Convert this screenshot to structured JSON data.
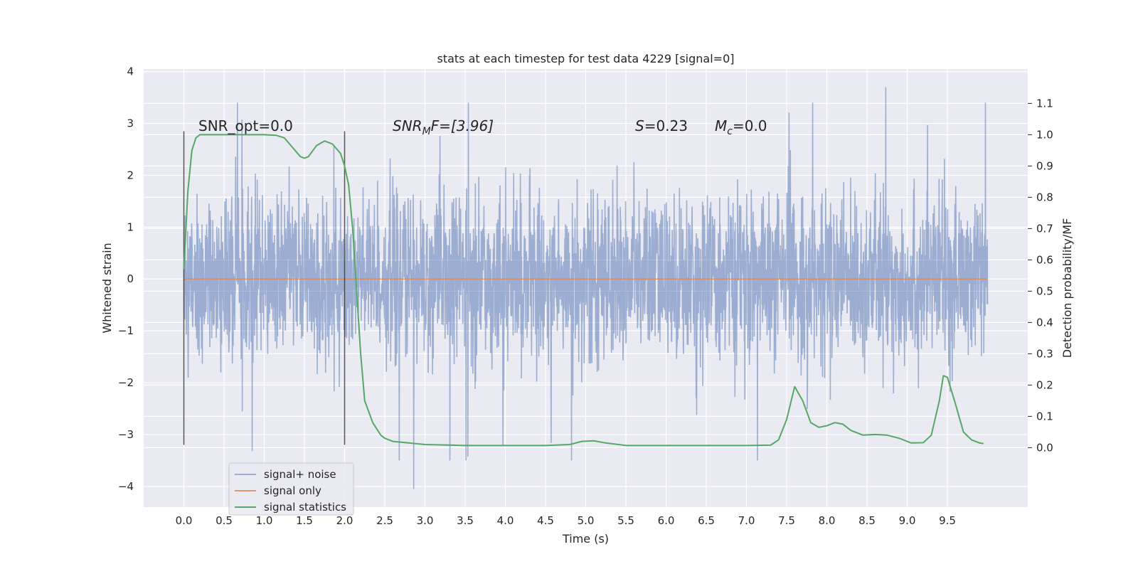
{
  "chart_data": {
    "type": "line",
    "title": "stats at each timestep for test data 4229 [signal=0]",
    "xlabel": "Time (s)",
    "ylabel": "Whitened strain",
    "y2label": "Detection probability/MF",
    "xlim": [
      -0.5,
      10.5
    ],
    "ylim": [
      -4.4,
      4.05
    ],
    "y2lim": [
      -0.19,
      1.21
    ],
    "x_ticks": [
      "0.0",
      "0.5",
      "1.0",
      "1.5",
      "2.0",
      "2.5",
      "3.0",
      "3.5",
      "4.0",
      "4.5",
      "5.0",
      "5.5",
      "6.0",
      "6.5",
      "7.0",
      "7.5",
      "8.0",
      "8.5",
      "9.0",
      "9.5"
    ],
    "y_ticks": [
      "−4",
      "−3",
      "−2",
      "−1",
      "0",
      "1",
      "2",
      "3",
      "4"
    ],
    "y2_ticks": [
      "0.0",
      "0.1",
      "0.2",
      "0.3",
      "0.4",
      "0.5",
      "0.6",
      "0.7",
      "0.8",
      "0.9",
      "1.0",
      "1.1"
    ],
    "grid": true,
    "legend_placement": "lower-left",
    "annotations": {
      "snr_opt": "SNR_opt=0.0",
      "snr_mf_name": "SNR",
      "snr_mf_sub": "M",
      "snr_mf_rest": "F=[3.96]",
      "s_name": "S",
      "s_rest": "=0.23",
      "mc_name": "M",
      "mc_sub": "c",
      "mc_rest": "=0.0"
    },
    "vertical_markers": [
      0.0,
      2.0
    ],
    "series": [
      {
        "name": "signal+ noise",
        "color": "#4c72b0",
        "axis": "left",
        "x_range": [
          0.0,
          10.0
        ],
        "noise_band": [
          -1.0,
          1.0
        ],
        "peak_extremes": [
          3.7,
          -4.05
        ]
      },
      {
        "name": "signal only",
        "color": "#dd8452",
        "axis": "left",
        "x": [
          0.0,
          10.0
        ],
        "y": [
          0.0,
          0.0
        ]
      },
      {
        "name": "signal statistics",
        "color": "#55a868",
        "axis": "right",
        "x": [
          0.0,
          0.05,
          0.1,
          0.15,
          0.2,
          0.3,
          0.5,
          0.8,
          1.0,
          1.15,
          1.25,
          1.35,
          1.45,
          1.5,
          1.55,
          1.65,
          1.75,
          1.85,
          1.95,
          2.0,
          2.05,
          2.1,
          2.15,
          2.2,
          2.25,
          2.35,
          2.45,
          2.5,
          2.6,
          2.8,
          3.0,
          3.5,
          4.0,
          4.5,
          4.8,
          4.95,
          5.1,
          5.25,
          5.5,
          6.0,
          6.5,
          7.0,
          7.3,
          7.4,
          7.5,
          7.6,
          7.7,
          7.8,
          7.9,
          8.0,
          8.1,
          8.2,
          8.3,
          8.45,
          8.6,
          8.75,
          8.9,
          9.05,
          9.2,
          9.3,
          9.4,
          9.45,
          9.5,
          9.6,
          9.7,
          9.8,
          9.9,
          9.95
        ],
        "y": [
          0.57,
          0.82,
          0.95,
          0.99,
          1.0,
          1.0,
          1.0,
          1.0,
          1.0,
          0.998,
          0.99,
          0.96,
          0.93,
          0.925,
          0.93,
          0.965,
          0.98,
          0.97,
          0.94,
          0.9,
          0.84,
          0.7,
          0.5,
          0.3,
          0.15,
          0.08,
          0.04,
          0.03,
          0.02,
          0.015,
          0.01,
          0.007,
          0.007,
          0.007,
          0.01,
          0.02,
          0.022,
          0.015,
          0.007,
          0.007,
          0.007,
          0.007,
          0.008,
          0.025,
          0.09,
          0.195,
          0.15,
          0.08,
          0.065,
          0.07,
          0.08,
          0.075,
          0.055,
          0.04,
          0.042,
          0.04,
          0.03,
          0.015,
          0.016,
          0.04,
          0.15,
          0.23,
          0.225,
          0.14,
          0.05,
          0.025,
          0.015,
          0.013
        ]
      }
    ]
  }
}
